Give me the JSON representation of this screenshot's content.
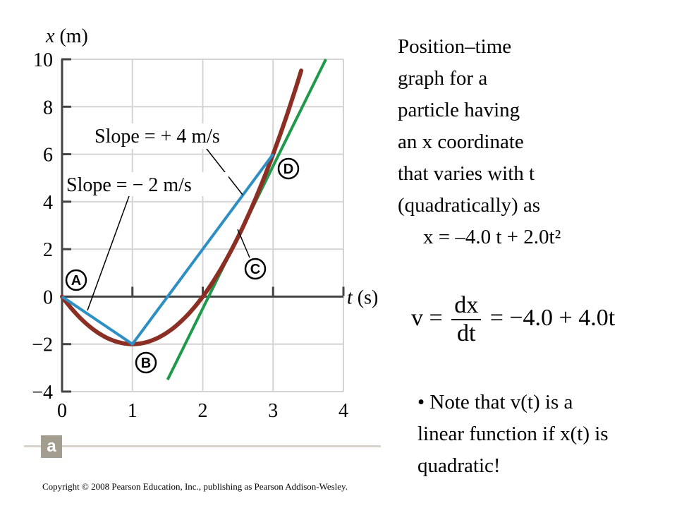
{
  "chart_data": {
    "type": "line",
    "xlabel_var": "t",
    "xlabel_unit": " (s)",
    "ylabel_var": "x",
    "ylabel_unit": " (m)",
    "xlim": [
      0,
      4
    ],
    "ylim": [
      -4,
      10
    ],
    "x_ticks": [
      0,
      1,
      2,
      3,
      4
    ],
    "y_ticks": [
      -4,
      -2,
      0,
      2,
      4,
      6,
      8,
      10
    ],
    "y_tick_labels": [
      "−4",
      "−2",
      "0",
      "2",
      "4",
      "6",
      "8",
      "10"
    ],
    "grid": true,
    "series": [
      {
        "kind": "curve",
        "equation": "x = -4.0 t + 2.0 t^2",
        "t_range": [
          0,
          3.4
        ],
        "color": "#8b2f24"
      },
      {
        "kind": "chord",
        "x": [
          0,
          1,
          3
        ],
        "y": [
          0,
          -2,
          6
        ],
        "color": "#2e8fc4"
      },
      {
        "kind": "tangent",
        "through": [
          2.5,
          2.5
        ],
        "slope": 6,
        "t_range": [
          1.5,
          3.75
        ],
        "color": "#1e9a4a"
      }
    ],
    "points": [
      {
        "label": "A",
        "t": 0,
        "x": 0
      },
      {
        "label": "B",
        "t": 1,
        "x": -2
      },
      {
        "label": "C",
        "t": 2.5,
        "x": 2.5
      },
      {
        "label": "D",
        "t": 3,
        "x": 6
      }
    ],
    "annotations": [
      {
        "text": "Slope = − 2 m/s"
      },
      {
        "text": "Slope = + 4 m/s"
      }
    ],
    "panel_label": "a"
  },
  "caption": {
    "lines": [
      "Position–time",
      "graph for a",
      "particle having",
      "an x coordinate",
      "that varies with t",
      "(quadratically)  as"
    ],
    "equation": "x = –4.0 t + 2.0t²"
  },
  "velocity_equation": {
    "lhs": "v =",
    "numerator": "dx",
    "denominator": "dt",
    "rhs": "= −4.0 + 4.0t"
  },
  "note": {
    "lines": [
      "• Note that v(t) is a",
      "linear function if x(t) is",
      "quadratic!"
    ]
  },
  "copyright": "Copyright © 2008 Pearson Education, Inc., publishing as Pearson Addison-Wesley.",
  "colors": {
    "curve": "#8b2f24",
    "chord": "#2e8fc4",
    "tangent": "#1e9a4a",
    "badge": "#a39d90"
  }
}
